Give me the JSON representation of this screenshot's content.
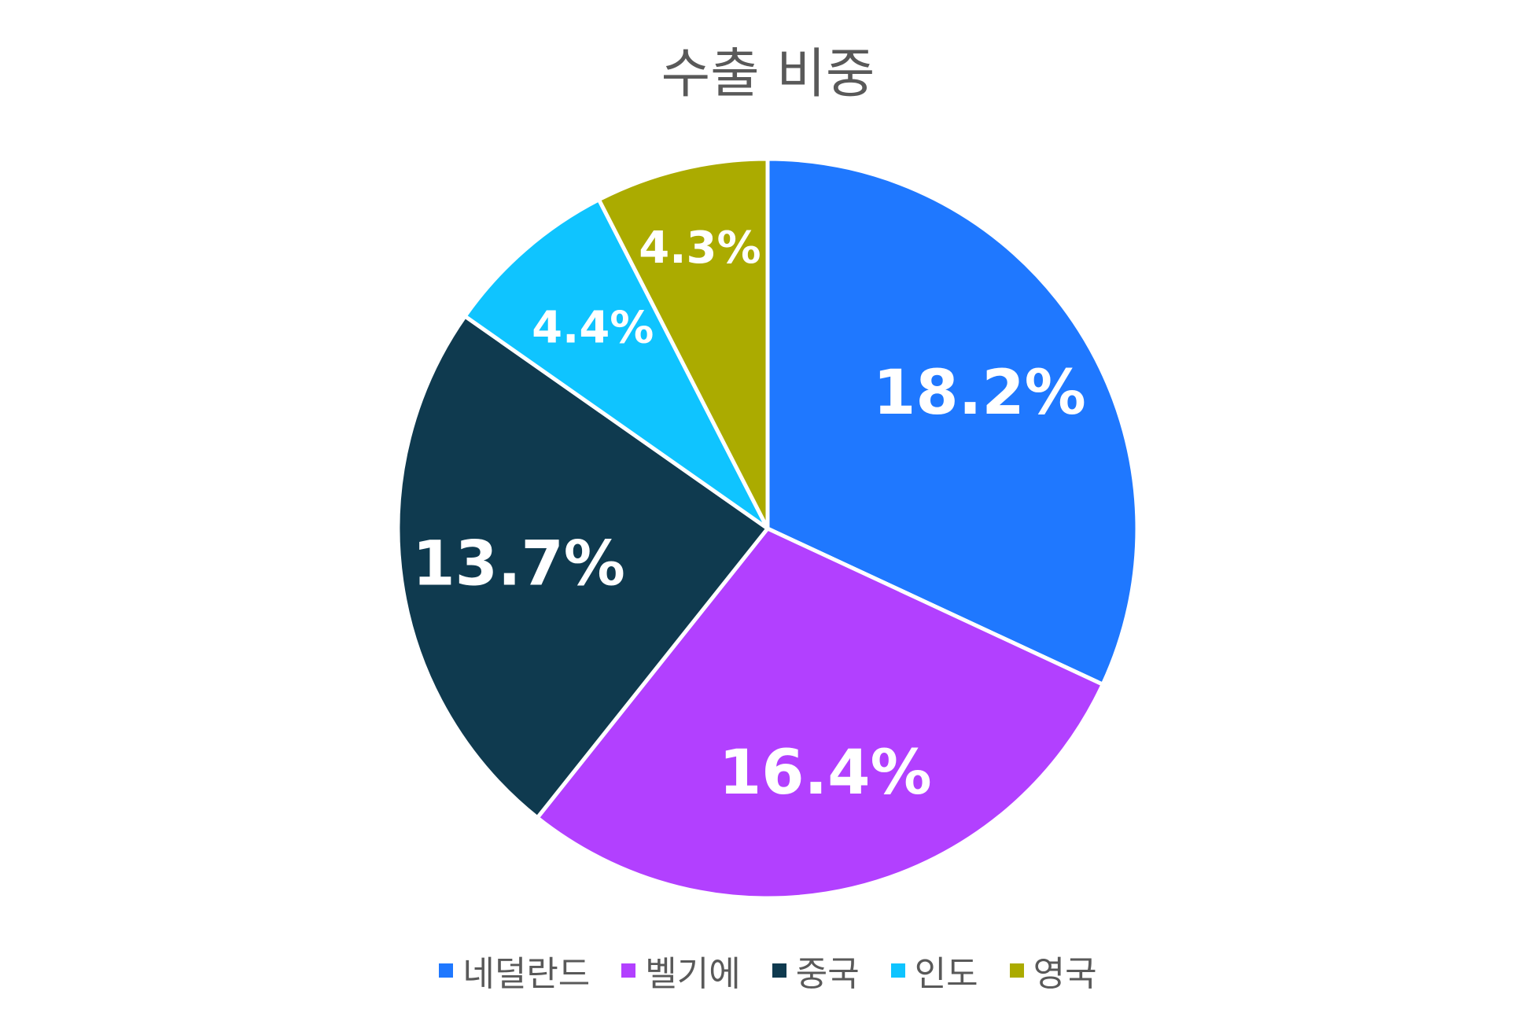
{
  "chart_data": {
    "type": "pie",
    "title": "수출 비중",
    "legend_position": "bottom",
    "slices": [
      {
        "name": "네덜란드",
        "value": 18.2,
        "label": "18.2%",
        "color": "#1f78ff"
      },
      {
        "name": "벨기에",
        "value": 16.4,
        "label": "16.4%",
        "color": "#b240ff"
      },
      {
        "name": "중국",
        "value": 13.7,
        "label": "13.7%",
        "color": "#0f3a4f"
      },
      {
        "name": "인도",
        "value": 4.4,
        "label": "4.4%",
        "color": "#0fc4ff"
      },
      {
        "name": "영국",
        "value": 4.3,
        "label": "4.3%",
        "color": "#abab00"
      }
    ]
  }
}
